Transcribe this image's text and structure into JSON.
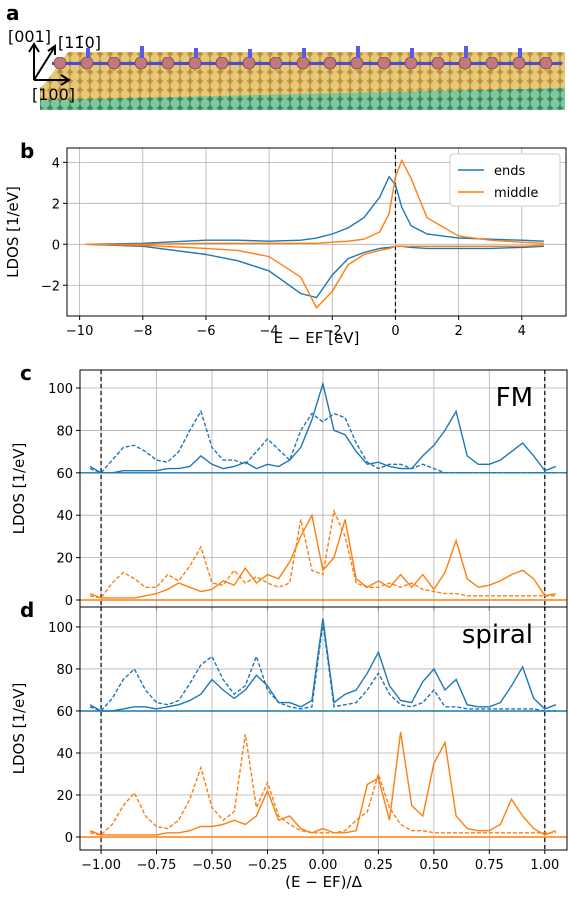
{
  "illustration": {
    "panel_label": "a",
    "axis_labels": [
      "[001]",
      "[11̄0]",
      "[100]"
    ]
  },
  "chart_data": [
    {
      "type": "line",
      "panel_label": "b",
      "xlabel": "E − EF [eV]",
      "ylabel": "LDOS [1/eV]",
      "xlim": [
        -10.4,
        5.4
      ],
      "ylim": [
        -3.5,
        4.7
      ],
      "xticks": [
        {
          "value": -10,
          "label": "−10"
        },
        {
          "value": -8,
          "label": "−8"
        },
        {
          "value": -6,
          "label": "−6"
        },
        {
          "value": -4,
          "label": "−4"
        },
        {
          "value": -2,
          "label": "−2"
        },
        0,
        2,
        4
      ],
      "yticks": [
        {
          "value": -2,
          "label": "−2"
        },
        0,
        2,
        4
      ],
      "grid": true,
      "vlines": [
        0
      ],
      "legend": "upper right",
      "x": [
        -9.8,
        -8,
        -6,
        -5,
        -4,
        -3,
        -2.5,
        -2,
        -1.5,
        -1,
        -0.5,
        -0.2,
        0,
        0.2,
        0.5,
        1,
        2,
        3,
        4,
        4.7
      ],
      "series": [
        {
          "name": "ends",
          "color": "#1f77b4",
          "up": [
            0,
            0.05,
            0.2,
            0.2,
            0.15,
            0.2,
            0.3,
            0.5,
            0.8,
            1.3,
            2.3,
            3.3,
            2.9,
            1.8,
            0.9,
            0.5,
            0.3,
            0.25,
            0.2,
            0.15
          ],
          "down": [
            0,
            -0.1,
            -0.5,
            -0.8,
            -1.3,
            -2.4,
            -2.6,
            -1.5,
            -0.7,
            -0.4,
            -0.2,
            -0.15,
            -0.1,
            -0.1,
            -0.15,
            -0.2,
            -0.2,
            -0.2,
            -0.15,
            -0.1
          ]
        },
        {
          "name": "middle",
          "color": "#ff7f0e",
          "up": [
            0,
            0,
            0.05,
            0.05,
            0.05,
            0.05,
            0.05,
            0.1,
            0.15,
            0.25,
            0.6,
            1.5,
            3.3,
            4.1,
            3.2,
            1.3,
            0.4,
            0.2,
            0.1,
            0.05
          ],
          "down": [
            0,
            -0.05,
            -0.2,
            -0.3,
            -0.6,
            -1.6,
            -3.1,
            -2.3,
            -1.0,
            -0.5,
            -0.3,
            -0.2,
            -0.1,
            -0.1,
            -0.1,
            -0.1,
            -0.1,
            -0.1,
            -0.1,
            -0.05
          ]
        }
      ]
    },
    {
      "type": "line",
      "panel_label": "c",
      "ylabel": "LDOS [1/eV]",
      "annotation": "FM",
      "xlim": [
        -1.095,
        1.1
      ],
      "ylim": [
        -3.3,
        108.5
      ],
      "xticks": [
        -1,
        -0.75,
        -0.5,
        -0.25,
        0,
        0.25,
        0.5,
        0.75,
        1
      ],
      "xtick_labels": false,
      "yticks": [
        0,
        20,
        40,
        60,
        80,
        100
      ],
      "grid": true,
      "vlines": [
        -1,
        1
      ],
      "x": [
        -1.05,
        -1.0,
        -0.95,
        -0.9,
        -0.85,
        -0.8,
        -0.75,
        -0.7,
        -0.65,
        -0.6,
        -0.55,
        -0.5,
        -0.45,
        -0.4,
        -0.35,
        -0.3,
        -0.25,
        -0.2,
        -0.15,
        -0.1,
        -0.05,
        0,
        0.05,
        0.1,
        0.15,
        0.2,
        0.25,
        0.3,
        0.35,
        0.4,
        0.45,
        0.5,
        0.55,
        0.6,
        0.65,
        0.7,
        0.75,
        0.8,
        0.85,
        0.9,
        0.95,
        1.0,
        1.05
      ],
      "series": [
        {
          "color": "#1f77b4",
          "x": [
            -1.095,
            1.1
          ],
          "values": [
            60,
            60
          ]
        },
        {
          "color": "#ff7f0e",
          "x": [
            -1.095,
            1.1
          ],
          "values": [
            0,
            0
          ]
        },
        {
          "color": "#1f77b4",
          "dashed": false,
          "values": [
            63,
            60,
            60,
            61,
            61,
            61,
            61,
            62,
            62,
            63,
            68,
            64,
            62,
            63,
            65,
            62,
            64,
            63,
            66,
            72,
            85,
            102,
            80,
            78,
            70,
            64,
            65,
            63,
            62,
            62,
            68,
            73,
            80,
            89,
            68,
            64,
            64,
            66,
            70,
            74,
            68,
            61,
            63
          ]
        },
        {
          "color": "#1f77b4",
          "dashed": true,
          "values": [
            62,
            60,
            66,
            72,
            73,
            70,
            66,
            65,
            70,
            80,
            89,
            72,
            66,
            66,
            64,
            70,
            76,
            71,
            66,
            80,
            88,
            84,
            88,
            86,
            74,
            65,
            62,
            64,
            64,
            62,
            64,
            62,
            60,
            60,
            60,
            60,
            60,
            60,
            60,
            60,
            60,
            60,
            60
          ]
        },
        {
          "color": "#ff7f0e",
          "dashed": false,
          "values": [
            3,
            1,
            1,
            1,
            1,
            2,
            3,
            5,
            8,
            6,
            4,
            5,
            9,
            7,
            15,
            8,
            12,
            10,
            18,
            30,
            40,
            14,
            20,
            38,
            10,
            6,
            9,
            6,
            12,
            6,
            12,
            5,
            13,
            28,
            10,
            6,
            7,
            9,
            12,
            14,
            10,
            2,
            3
          ]
        },
        {
          "color": "#ff7f0e",
          "dashed": true,
          "values": [
            2,
            1,
            8,
            13,
            10,
            6,
            6,
            12,
            9,
            16,
            25,
            8,
            7,
            14,
            8,
            11,
            8,
            6,
            8,
            38,
            14,
            12,
            42,
            30,
            8,
            6,
            6,
            8,
            6,
            8,
            5,
            4,
            3,
            3,
            2,
            2,
            2,
            2,
            2,
            2,
            2,
            2,
            2
          ]
        }
      ]
    },
    {
      "type": "line",
      "panel_label": "d",
      "xlabel": "(E − EF)/Δ",
      "ylabel": "LDOS [1/eV]",
      "annotation": "spiral",
      "xlim": [
        -1.095,
        1.1
      ],
      "ylim": [
        -6.2,
        109.5
      ],
      "xticks": [
        {
          "value": -1,
          "label": "−1.00"
        },
        {
          "value": -0.75,
          "label": "−0.75"
        },
        {
          "value": -0.5,
          "label": "−0.50"
        },
        {
          "value": -0.25,
          "label": "−0.25"
        },
        {
          "value": 0,
          "label": "0.00"
        },
        {
          "value": 0.25,
          "label": "0.25"
        },
        {
          "value": 0.5,
          "label": "0.50"
        },
        {
          "value": 0.75,
          "label": "0.75"
        },
        {
          "value": 1,
          "label": "1.00"
        }
      ],
      "yticks": [
        0,
        20,
        40,
        60,
        80,
        100
      ],
      "grid": true,
      "vlines": [
        -1,
        1
      ],
      "x": [
        -1.05,
        -1.0,
        -0.95,
        -0.9,
        -0.85,
        -0.8,
        -0.75,
        -0.7,
        -0.65,
        -0.6,
        -0.55,
        -0.5,
        -0.45,
        -0.4,
        -0.35,
        -0.3,
        -0.25,
        -0.2,
        -0.15,
        -0.1,
        -0.05,
        0,
        0.05,
        0.1,
        0.15,
        0.2,
        0.25,
        0.3,
        0.35,
        0.4,
        0.45,
        0.5,
        0.55,
        0.6,
        0.65,
        0.7,
        0.75,
        0.8,
        0.85,
        0.9,
        0.95,
        1.0,
        1.05
      ],
      "series": [
        {
          "color": "#1f77b4",
          "x": [
            -1.095,
            1.1
          ],
          "values": [
            60,
            60
          ]
        },
        {
          "color": "#ff7f0e",
          "x": [
            -1.095,
            1.1
          ],
          "values": [
            0,
            0
          ]
        },
        {
          "color": "#1f77b4",
          "dashed": false,
          "values": [
            63,
            60,
            60,
            61,
            62,
            62,
            61,
            62,
            63,
            65,
            68,
            75,
            70,
            66,
            70,
            77,
            72,
            64,
            64,
            62,
            65,
            104,
            64,
            68,
            70,
            78,
            88,
            72,
            65,
            64,
            74,
            80,
            70,
            75,
            63,
            62,
            62,
            64,
            72,
            81,
            66,
            61,
            63
          ]
        },
        {
          "color": "#1f77b4",
          "dashed": true,
          "values": [
            62,
            60,
            66,
            75,
            80,
            70,
            64,
            63,
            65,
            73,
            82,
            86,
            75,
            68,
            72,
            86,
            70,
            64,
            62,
            61,
            62,
            102,
            62,
            63,
            64,
            70,
            78,
            68,
            63,
            62,
            64,
            70,
            62,
            62,
            61,
            61,
            61,
            61,
            61,
            61,
            61,
            60,
            60
          ]
        },
        {
          "color": "#ff7f0e",
          "dashed": false,
          "values": [
            3,
            1,
            1,
            1,
            1,
            1,
            1,
            2,
            2,
            3,
            5,
            5,
            6,
            8,
            6,
            10,
            22,
            8,
            10,
            4,
            2,
            4,
            2,
            2,
            3,
            25,
            28,
            8,
            50,
            15,
            10,
            35,
            45,
            10,
            4,
            3,
            3,
            6,
            18,
            10,
            4,
            1,
            3
          ]
        },
        {
          "color": "#ff7f0e",
          "dashed": true,
          "values": [
            2,
            1,
            6,
            15,
            21,
            10,
            5,
            4,
            8,
            18,
            33,
            14,
            8,
            12,
            49,
            14,
            26,
            10,
            6,
            3,
            2,
            2,
            2,
            3,
            8,
            12,
            30,
            14,
            6,
            3,
            3,
            2,
            2,
            2,
            2,
            2,
            2,
            2,
            2,
            2,
            2,
            2,
            2
          ]
        }
      ]
    }
  ]
}
